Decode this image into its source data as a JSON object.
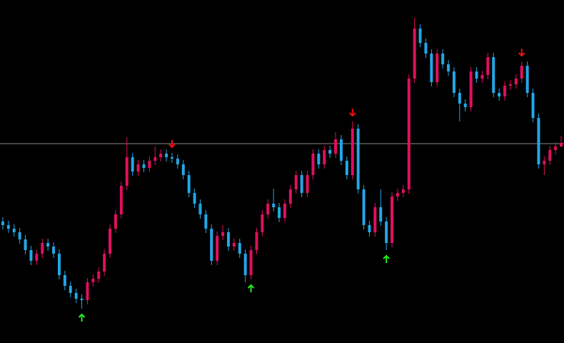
{
  "chart_data": {
    "type": "candlestick",
    "background": "#000000",
    "bull_color": "#e0105e",
    "bear_color": "#22a7e6",
    "level": 279,
    "level_color": "#8a8a8a",
    "buy_color": "#22ee22",
    "sell_color": "#ee1111",
    "ylim": [
      0,
      480
    ],
    "open": [
      170,
      165,
      160,
      155,
      145,
      130,
      115,
      125,
      140,
      135,
      125,
      95,
      80,
      70,
      62,
      60,
      85,
      90,
      100,
      125,
      160,
      180,
      220,
      260,
      240,
      250,
      245,
      255,
      260,
      265,
      260,
      258,
      250,
      235,
      210,
      195,
      180,
      160,
      115,
      150,
      155,
      135,
      140,
      125,
      95,
      130,
      155,
      180,
      195,
      190,
      175,
      195,
      215,
      235,
      210,
      235,
      265,
      250,
      270,
      265,
      285,
      255,
      235,
      300,
      215,
      165,
      155,
      190,
      170,
      140,
      205,
      210,
      215,
      370,
      440,
      420,
      405,
      365,
      405,
      390,
      380,
      350,
      335,
      330,
      380,
      370,
      375,
      400,
      350,
      345,
      360,
      362,
      370,
      388,
      350,
      315,
      250,
      255,
      270,
      275
    ],
    "high": [
      176,
      171,
      166,
      161,
      151,
      136,
      131,
      146,
      146,
      141,
      131,
      101,
      86,
      76,
      68,
      91,
      96,
      106,
      131,
      166,
      186,
      226,
      288,
      266,
      256,
      256,
      261,
      275,
      271,
      271,
      266,
      264,
      256,
      241,
      216,
      201,
      186,
      166,
      156,
      165,
      161,
      146,
      146,
      131,
      136,
      161,
      186,
      201,
      216,
      196,
      201,
      221,
      241,
      241,
      241,
      271,
      271,
      276,
      276,
      295,
      291,
      261,
      310,
      306,
      221,
      171,
      196,
      215,
      176,
      211,
      216,
      221,
      376,
      455,
      446,
      426,
      411,
      411,
      411,
      396,
      386,
      356,
      341,
      386,
      386,
      381,
      406,
      406,
      356,
      366,
      368,
      376,
      394,
      394,
      356,
      321,
      261,
      276,
      281,
      290
    ],
    "low": [
      159,
      154,
      149,
      139,
      124,
      109,
      109,
      119,
      129,
      119,
      89,
      74,
      64,
      56,
      48,
      54,
      79,
      84,
      94,
      119,
      154,
      174,
      214,
      234,
      234,
      239,
      239,
      249,
      254,
      254,
      252,
      244,
      229,
      204,
      189,
      174,
      154,
      109,
      109,
      144,
      129,
      129,
      119,
      85,
      89,
      124,
      149,
      174,
      184,
      169,
      169,
      189,
      209,
      204,
      204,
      229,
      244,
      244,
      259,
      259,
      249,
      229,
      229,
      209,
      159,
      149,
      149,
      164,
      130,
      134,
      199,
      204,
      209,
      364,
      414,
      399,
      359,
      359,
      384,
      374,
      344,
      310,
      324,
      324,
      364,
      364,
      369,
      344,
      339,
      339,
      354,
      356,
      364,
      344,
      309,
      244,
      235,
      249,
      264,
      274
    ],
    "close": [
      165,
      160,
      155,
      145,
      130,
      115,
      125,
      140,
      135,
      125,
      95,
      80,
      70,
      62,
      60,
      85,
      90,
      100,
      125,
      160,
      180,
      220,
      260,
      240,
      250,
      245,
      255,
      260,
      265,
      260,
      258,
      250,
      235,
      210,
      195,
      180,
      160,
      115,
      150,
      155,
      135,
      140,
      125,
      95,
      130,
      155,
      180,
      195,
      190,
      175,
      195,
      215,
      235,
      210,
      235,
      265,
      250,
      270,
      265,
      285,
      255,
      235,
      300,
      215,
      165,
      155,
      190,
      170,
      140,
      205,
      210,
      215,
      370,
      440,
      420,
      405,
      365,
      405,
      390,
      380,
      350,
      335,
      330,
      380,
      370,
      375,
      400,
      350,
      345,
      360,
      362,
      370,
      388,
      350,
      315,
      250,
      255,
      270,
      275,
      280
    ],
    "buy_signals": [
      14,
      44,
      68
    ],
    "sell_signals": [
      30,
      62,
      92
    ]
  }
}
